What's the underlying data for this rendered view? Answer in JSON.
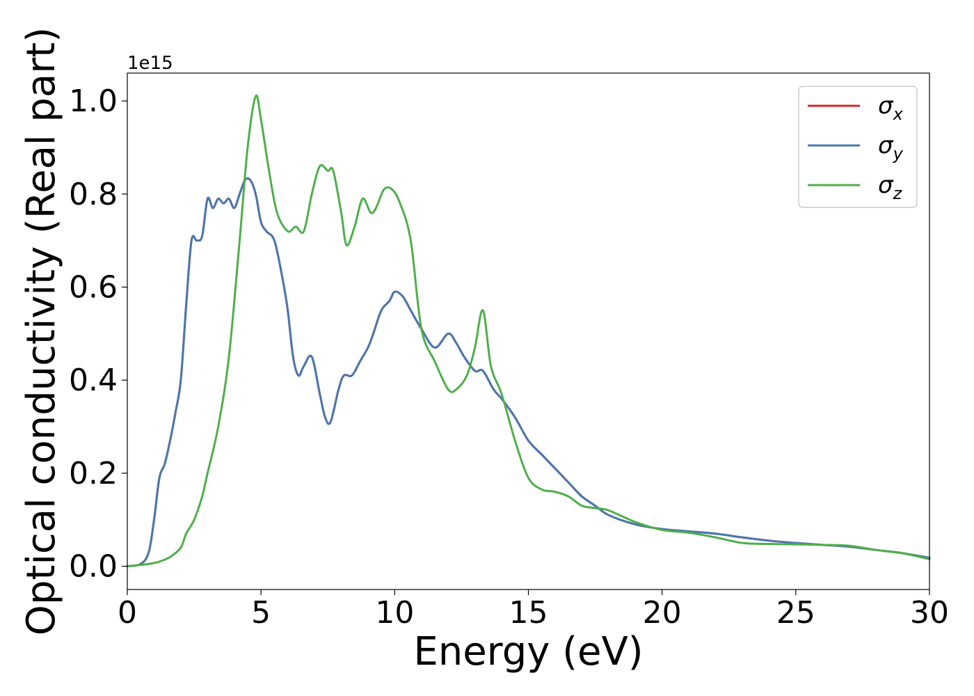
{
  "chart_data": {
    "type": "line",
    "xlabel": "Energy (eV)",
    "ylabel": "Optical conductivity (Real part)",
    "y_offset_label": "1e15",
    "xlim": [
      0,
      30
    ],
    "ylim": [
      -0.05,
      1.06
    ],
    "y_scale_factor": 1000000000000000.0,
    "xticks": [
      0,
      5,
      10,
      15,
      20,
      25,
      30
    ],
    "xtick_labels": [
      "0",
      "5",
      "10",
      "15",
      "20",
      "25",
      "30"
    ],
    "yticks": [
      0.0,
      0.2,
      0.4,
      0.6,
      0.8,
      1.0
    ],
    "ytick_labels": [
      "0.0",
      "0.2",
      "0.4",
      "0.6",
      "0.8",
      "1.0"
    ],
    "grid": false,
    "legend_position": "top-right",
    "series": [
      {
        "name": "σx",
        "legend_symbol": "σ",
        "legend_subscript": "x",
        "color": "#d62728",
        "x": [
          0,
          0.5,
          0.8,
          1.0,
          1.2,
          1.4,
          1.6,
          1.8,
          2.0,
          2.2,
          2.4,
          2.6,
          2.8,
          3.0,
          3.2,
          3.4,
          3.6,
          3.8,
          4.0,
          4.2,
          4.4,
          4.6,
          4.8,
          5.0,
          5.2,
          5.5,
          5.8,
          6.0,
          6.2,
          6.4,
          6.6,
          6.9,
          7.2,
          7.4,
          7.6,
          7.9,
          8.1,
          8.4,
          8.7,
          9.0,
          9.2,
          9.5,
          9.8,
          10.0,
          10.3,
          10.6,
          11.0,
          11.5,
          12.0,
          12.3,
          12.6,
          13.0,
          13.3,
          13.7,
          14.0,
          14.5,
          15.0,
          15.5,
          16.0,
          16.5,
          17.0,
          17.5,
          18.0,
          19.0,
          20.0,
          21.0,
          22.0,
          23.0,
          24.0,
          25.0,
          26.0,
          27.0,
          28.0,
          29.0,
          30.0
        ],
        "y": [
          0.0,
          0.005,
          0.03,
          0.1,
          0.19,
          0.22,
          0.27,
          0.33,
          0.4,
          0.56,
          0.7,
          0.7,
          0.71,
          0.79,
          0.77,
          0.79,
          0.78,
          0.79,
          0.77,
          0.8,
          0.83,
          0.83,
          0.8,
          0.74,
          0.72,
          0.7,
          0.62,
          0.55,
          0.45,
          0.41,
          0.43,
          0.45,
          0.37,
          0.32,
          0.31,
          0.38,
          0.41,
          0.41,
          0.44,
          0.47,
          0.5,
          0.55,
          0.57,
          0.59,
          0.58,
          0.55,
          0.51,
          0.47,
          0.5,
          0.48,
          0.45,
          0.42,
          0.42,
          0.38,
          0.36,
          0.32,
          0.27,
          0.24,
          0.21,
          0.18,
          0.15,
          0.13,
          0.11,
          0.09,
          0.08,
          0.075,
          0.07,
          0.062,
          0.055,
          0.05,
          0.046,
          0.042,
          0.035,
          0.028,
          0.018
        ]
      },
      {
        "name": "σy",
        "legend_symbol": "σ",
        "legend_subscript": "y",
        "color": "#4878b0",
        "x": [
          0,
          0.5,
          0.8,
          1.0,
          1.2,
          1.4,
          1.6,
          1.8,
          2.0,
          2.2,
          2.4,
          2.6,
          2.8,
          3.0,
          3.2,
          3.4,
          3.6,
          3.8,
          4.0,
          4.2,
          4.4,
          4.6,
          4.8,
          5.0,
          5.2,
          5.5,
          5.8,
          6.0,
          6.2,
          6.4,
          6.6,
          6.9,
          7.2,
          7.4,
          7.6,
          7.9,
          8.1,
          8.4,
          8.7,
          9.0,
          9.2,
          9.5,
          9.8,
          10.0,
          10.3,
          10.6,
          11.0,
          11.5,
          12.0,
          12.3,
          12.6,
          13.0,
          13.3,
          13.7,
          14.0,
          14.5,
          15.0,
          15.5,
          16.0,
          16.5,
          17.0,
          17.5,
          18.0,
          19.0,
          20.0,
          21.0,
          22.0,
          23.0,
          24.0,
          25.0,
          26.0,
          27.0,
          28.0,
          29.0,
          30.0
        ],
        "y": [
          0.0,
          0.005,
          0.03,
          0.1,
          0.19,
          0.22,
          0.27,
          0.33,
          0.4,
          0.56,
          0.7,
          0.7,
          0.71,
          0.79,
          0.77,
          0.79,
          0.78,
          0.79,
          0.77,
          0.8,
          0.83,
          0.83,
          0.8,
          0.74,
          0.72,
          0.7,
          0.62,
          0.55,
          0.45,
          0.41,
          0.43,
          0.45,
          0.37,
          0.32,
          0.31,
          0.38,
          0.41,
          0.41,
          0.44,
          0.47,
          0.5,
          0.55,
          0.57,
          0.59,
          0.58,
          0.55,
          0.51,
          0.47,
          0.5,
          0.48,
          0.45,
          0.42,
          0.42,
          0.38,
          0.36,
          0.32,
          0.27,
          0.24,
          0.21,
          0.18,
          0.15,
          0.13,
          0.11,
          0.09,
          0.08,
          0.075,
          0.07,
          0.062,
          0.055,
          0.05,
          0.046,
          0.042,
          0.035,
          0.028,
          0.018
        ]
      },
      {
        "name": "σz",
        "legend_symbol": "σ",
        "legend_subscript": "z",
        "color": "#4daf4a",
        "x": [
          0,
          0.8,
          1.2,
          1.6,
          2.0,
          2.2,
          2.5,
          2.8,
          3.0,
          3.4,
          3.8,
          4.2,
          4.5,
          4.8,
          5.0,
          5.3,
          5.6,
          6.0,
          6.3,
          6.6,
          6.9,
          7.2,
          7.5,
          7.7,
          8.0,
          8.2,
          8.5,
          8.8,
          9.1,
          9.3,
          9.6,
          9.9,
          10.2,
          10.6,
          11.0,
          11.5,
          12.0,
          12.3,
          12.7,
          13.0,
          13.3,
          13.6,
          14.0,
          14.5,
          15.0,
          15.5,
          16.0,
          16.5,
          17.0,
          17.5,
          18.0,
          19.0,
          20.0,
          21.0,
          22.0,
          23.0,
          24.0,
          25.0,
          26.0,
          27.0,
          28.0,
          29.0,
          30.0
        ],
        "y": [
          0.0,
          0.005,
          0.01,
          0.02,
          0.04,
          0.07,
          0.1,
          0.15,
          0.2,
          0.3,
          0.45,
          0.7,
          0.9,
          1.01,
          0.96,
          0.85,
          0.76,
          0.72,
          0.73,
          0.72,
          0.8,
          0.86,
          0.85,
          0.85,
          0.76,
          0.69,
          0.73,
          0.79,
          0.76,
          0.77,
          0.81,
          0.81,
          0.78,
          0.7,
          0.51,
          0.44,
          0.38,
          0.38,
          0.41,
          0.47,
          0.55,
          0.43,
          0.37,
          0.27,
          0.19,
          0.165,
          0.16,
          0.15,
          0.13,
          0.125,
          0.12,
          0.095,
          0.078,
          0.072,
          0.062,
          0.05,
          0.048,
          0.047,
          0.046,
          0.044,
          0.035,
          0.028,
          0.015
        ]
      }
    ]
  }
}
